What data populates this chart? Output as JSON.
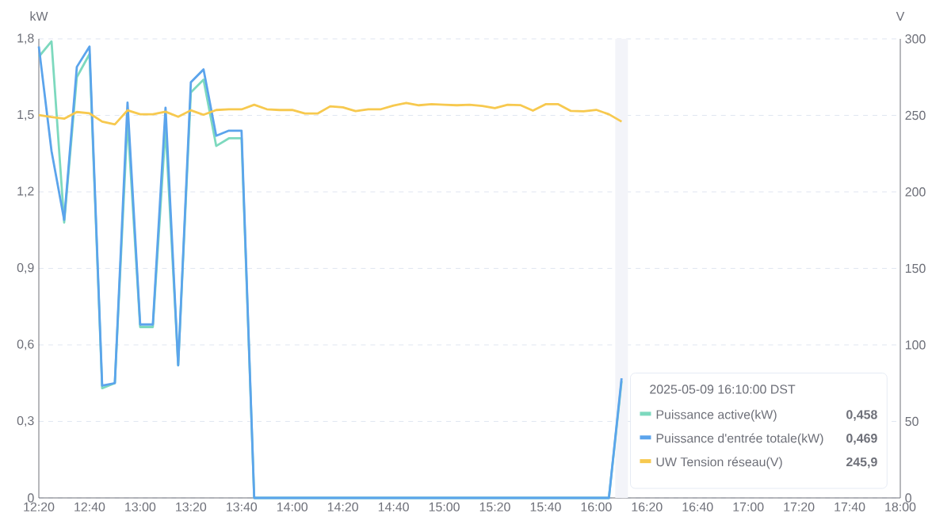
{
  "chart_data": {
    "type": "line",
    "ylabel": "kW",
    "y2label": "V",
    "x": [
      12.3333,
      12.4167,
      12.5,
      12.5833,
      12.6667,
      12.75,
      12.8333,
      12.9167,
      13,
      13.0833,
      13.1667,
      13.25,
      13.3333,
      13.4167,
      13.5,
      13.5833,
      13.6667,
      13.75,
      13.8333,
      13.9167,
      14,
      14.0833,
      14.1667,
      14.25,
      14.3333,
      14.4167,
      14.5,
      14.5833,
      14.6667,
      14.75,
      14.8333,
      14.9167,
      15,
      15.0833,
      15.1667,
      15.25,
      15.3333,
      15.4167,
      15.5,
      15.5833,
      15.6667,
      15.75,
      15.8333,
      15.9167,
      16,
      16.0833,
      16.1667
    ],
    "series": [
      {
        "name": "Puissance active(kW)",
        "color": "#7dd9be",
        "values": [
          1.73,
          1.79,
          1.08,
          1.65,
          1.74,
          0.43,
          0.45,
          1.48,
          0.67,
          0.67,
          1.45,
          0.52,
          1.59,
          1.64,
          1.38,
          1.41,
          1.41,
          0,
          0,
          0,
          0,
          0,
          0,
          0,
          0,
          0,
          0,
          0,
          0,
          0,
          0,
          0,
          0,
          0,
          0,
          0,
          0,
          0,
          0,
          0,
          0,
          0,
          0,
          0,
          0,
          0,
          0.458
        ]
      },
      {
        "name": "Puissance d'entrée totale(kW)",
        "color": "#5ba4ec",
        "values": [
          1.77,
          1.36,
          1.09,
          1.69,
          1.77,
          0.44,
          0.45,
          1.55,
          0.68,
          0.68,
          1.53,
          0.52,
          1.63,
          1.68,
          1.42,
          1.44,
          1.44,
          0,
          0,
          0,
          0,
          0,
          0,
          0,
          0,
          0,
          0,
          0,
          0,
          0,
          0,
          0,
          0,
          0,
          0,
          0,
          0,
          0,
          0,
          0,
          0,
          0,
          0,
          0,
          0,
          0,
          0.469
        ]
      },
      {
        "name": "UW Tension réseau(V)",
        "color": "#f7c94f",
        "axis": "y2",
        "values": [
          250.2,
          248.9,
          247.8,
          252.2,
          251.3,
          245.9,
          244.1,
          253.3,
          250.7,
          250.7,
          252.4,
          249.1,
          253.3,
          250.4,
          253.5,
          253.9,
          253.9,
          256.9,
          254.0,
          253.5,
          253.6,
          251.2,
          251.2,
          255.9,
          255.2,
          252.8,
          254.0,
          254.0,
          256.4,
          258.1,
          256.6,
          257.3,
          256.9,
          256.6,
          256.9,
          256.2,
          254.7,
          256.9,
          256.7,
          253.1,
          257.3,
          257.3,
          252.9,
          252.6,
          253.6,
          250.7,
          245.9
        ]
      }
    ],
    "xlim": [
      12.3333,
      18
    ],
    "xticks": [
      {
        "value": 12.3333,
        "label": "12:20"
      },
      {
        "value": 12.6667,
        "label": "12:40"
      },
      {
        "value": 13,
        "label": "13:00"
      },
      {
        "value": 13.3333,
        "label": "13:20"
      },
      {
        "value": 13.6667,
        "label": "13:40"
      },
      {
        "value": 14,
        "label": "14:00"
      },
      {
        "value": 14.3333,
        "label": "14:20"
      },
      {
        "value": 14.6667,
        "label": "14:40"
      },
      {
        "value": 15,
        "label": "15:00"
      },
      {
        "value": 15.3333,
        "label": "15:20"
      },
      {
        "value": 15.6667,
        "label": "15:40"
      },
      {
        "value": 16,
        "label": "16:00"
      },
      {
        "value": 16.3333,
        "label": "16:20"
      },
      {
        "value": 16.6667,
        "label": "16:40"
      },
      {
        "value": 17,
        "label": "17:00"
      },
      {
        "value": 17.3333,
        "label": "17:20"
      },
      {
        "value": 17.6667,
        "label": "17:40"
      },
      {
        "value": 18,
        "label": "18:00"
      }
    ],
    "ylim": [
      0,
      1.8
    ],
    "yticks": [
      0,
      {
        "value": 0.3,
        "label": "0,3"
      },
      {
        "value": 0.6,
        "label": "0,6"
      },
      {
        "value": 0.9,
        "label": "0,9"
      },
      {
        "value": 1.2,
        "label": "1,2"
      },
      {
        "value": 1.5,
        "label": "1,5"
      },
      {
        "value": 1.8,
        "label": "1,8"
      }
    ],
    "y2lim": [
      0,
      300
    ],
    "y2ticks": [
      0,
      50,
      100,
      150,
      200,
      250,
      300
    ],
    "bands": [
      {
        "axis": "x",
        "from": 16.125,
        "to": 16.2083,
        "color": "#f3f4f9"
      }
    ],
    "annotations": [
      "2025-05-09 16:10:00 DST",
      "0,458",
      "0,469",
      "245,9"
    ],
    "grid": "y",
    "legend": "bottom right",
    "marker": "none",
    "line_style": "solid"
  }
}
